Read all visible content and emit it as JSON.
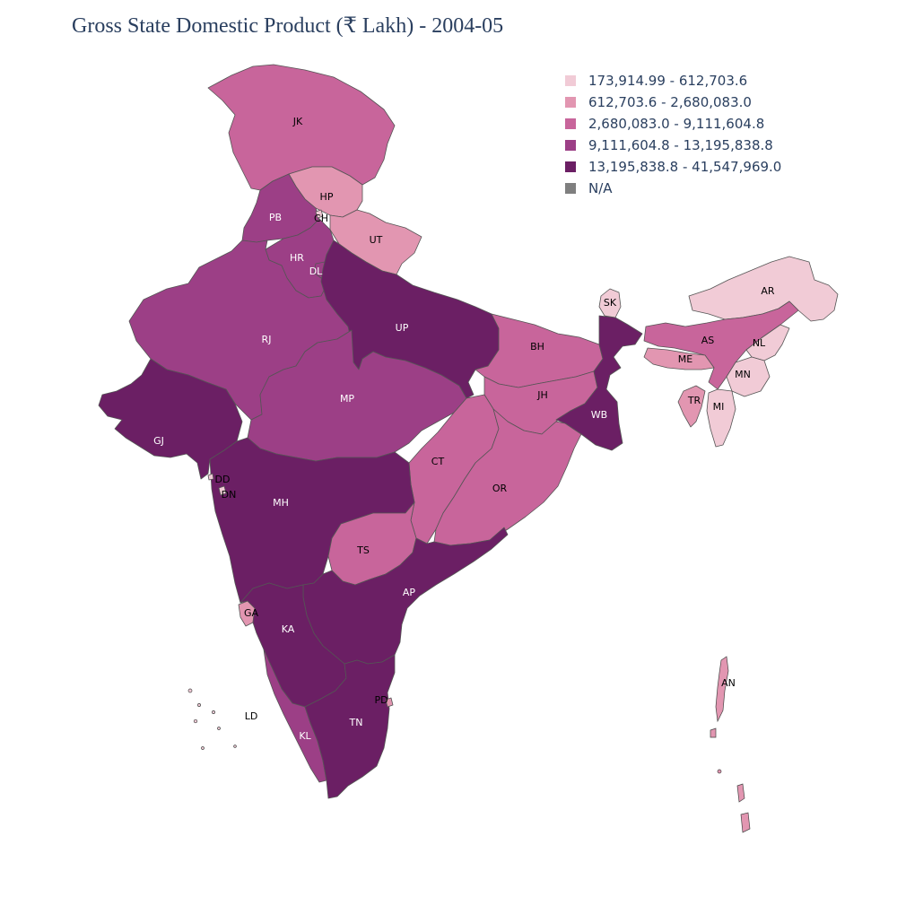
{
  "title": "Gross State Domestic Product (₹ Lakh) - 2004-05",
  "legend": [
    {
      "label": "173,914.99 - 612,703.6",
      "color": "#f1cbd6"
    },
    {
      "label": "612,703.6 - 2,680,083.0",
      "color": "#e296b1"
    },
    {
      "label": "2,680,083.0 - 9,111,604.8",
      "color": "#c8659b"
    },
    {
      "label": "9,111,604.8 - 13,195,838.8",
      "color": "#9c3f86"
    },
    {
      "label": "13,195,838.8 - 41,547,969.0",
      "color": "#6b1f64"
    },
    {
      "label": "N/A",
      "color": "#7f7f7f"
    }
  ],
  "states": [
    {
      "code": "JK",
      "bin": 2
    },
    {
      "code": "HP",
      "bin": 1
    },
    {
      "code": "CH",
      "bin": 0
    },
    {
      "code": "PB",
      "bin": 3
    },
    {
      "code": "UT",
      "bin": 1
    },
    {
      "code": "HR",
      "bin": 3
    },
    {
      "code": "DL",
      "bin": 3
    },
    {
      "code": "RJ",
      "bin": 3
    },
    {
      "code": "UP",
      "bin": 4
    },
    {
      "code": "SK",
      "bin": 0
    },
    {
      "code": "AR",
      "bin": 0
    },
    {
      "code": "AS",
      "bin": 2
    },
    {
      "code": "NL",
      "bin": 0
    },
    {
      "code": "ME",
      "bin": 1
    },
    {
      "code": "MN",
      "bin": 0
    },
    {
      "code": "TR",
      "bin": 1
    },
    {
      "code": "MI",
      "bin": 0
    },
    {
      "code": "BH",
      "bin": 2
    },
    {
      "code": "JH",
      "bin": 2
    },
    {
      "code": "WB",
      "bin": 4
    },
    {
      "code": "GJ",
      "bin": 4
    },
    {
      "code": "MP",
      "bin": 3
    },
    {
      "code": "CT",
      "bin": 2
    },
    {
      "code": "OR",
      "bin": 2
    },
    {
      "code": "DD",
      "bin": 0
    },
    {
      "code": "DN",
      "bin": 0
    },
    {
      "code": "MH",
      "bin": 4
    },
    {
      "code": "TS",
      "bin": 2
    },
    {
      "code": "AP",
      "bin": 4
    },
    {
      "code": "GA",
      "bin": 1
    },
    {
      "code": "KA",
      "bin": 4
    },
    {
      "code": "KL",
      "bin": 3
    },
    {
      "code": "TN",
      "bin": 4
    },
    {
      "code": "PD",
      "bin": 1
    },
    {
      "code": "LD",
      "bin": 0
    },
    {
      "code": "AN",
      "bin": 1
    }
  ]
}
